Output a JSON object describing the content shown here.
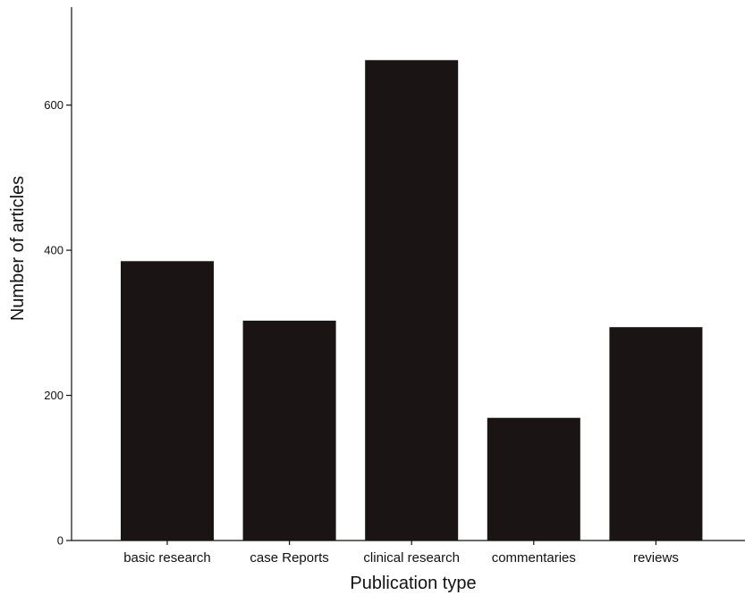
{
  "chart_data": {
    "type": "bar",
    "title": "",
    "xlabel": "Publication type",
    "ylabel": "Number of articles",
    "categories": [
      "basic research",
      "case Reports",
      "clinical research",
      "commentaries",
      "reviews"
    ],
    "values": [
      385,
      303,
      662,
      169,
      294
    ],
    "ylim": [
      0,
      735
    ],
    "yticks": [
      0,
      200,
      400,
      600
    ],
    "ytick_labels": [
      "0",
      "200",
      "400",
      "600"
    ],
    "grid": false,
    "legend": "none",
    "bar_color": "#1a1414"
  }
}
